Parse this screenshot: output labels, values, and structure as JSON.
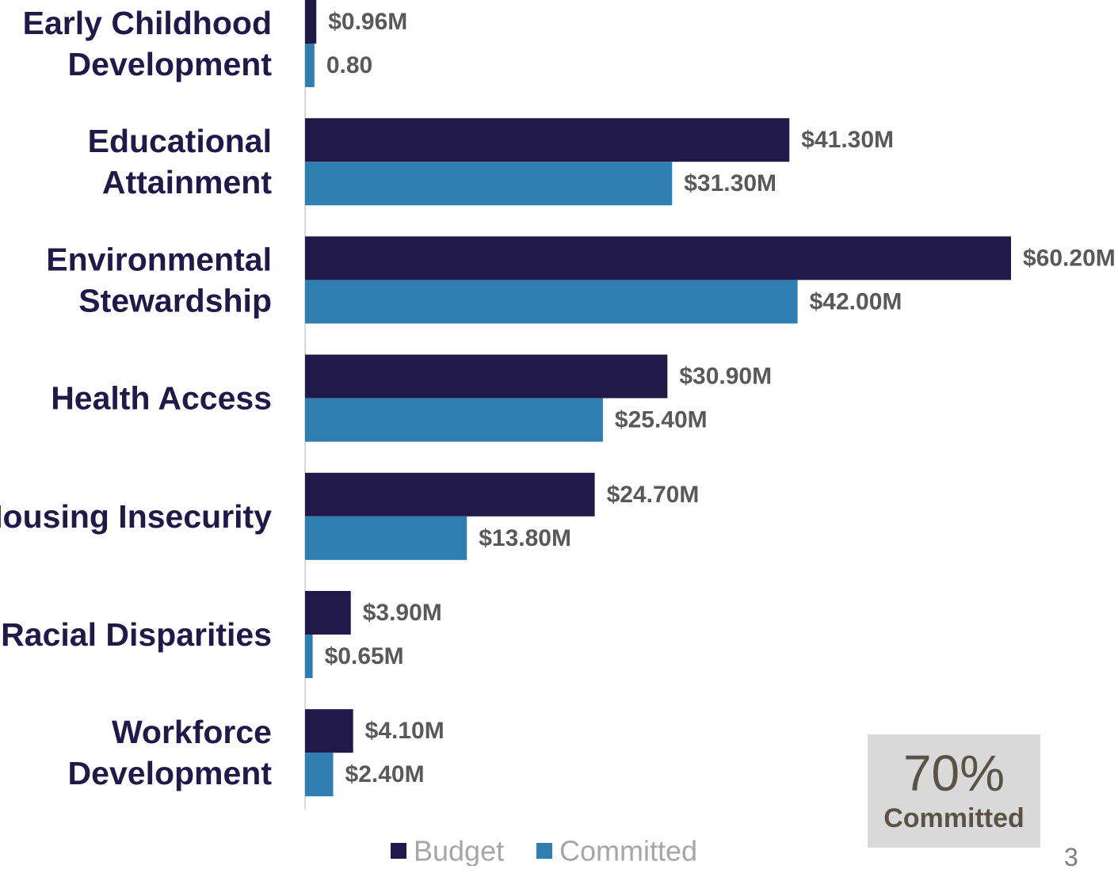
{
  "chart_data": {
    "type": "bar",
    "orientation": "horizontal",
    "categories": [
      [
        "Early Childhood",
        "Development"
      ],
      [
        "Educational",
        "Attainment"
      ],
      [
        "Environmental",
        "Stewardship"
      ],
      [
        "Health Access"
      ],
      [
        "Housing Insecurity"
      ],
      [
        "Racial Disparities"
      ],
      [
        "Workforce",
        "Development"
      ]
    ],
    "series": [
      {
        "name": "Budget",
        "color": "#211a48",
        "values": [
          0.96,
          41.3,
          60.2,
          30.9,
          24.7,
          3.9,
          4.1
        ],
        "labels": [
          "$0.96M",
          "$41.30M",
          "$60.20M",
          "$30.90M",
          "$24.70M",
          "$3.90M",
          "$4.10M"
        ]
      },
      {
        "name": "Committed",
        "color": "#2e7eb1",
        "values": [
          0.8,
          31.3,
          42.0,
          25.4,
          13.8,
          0.65,
          2.4
        ],
        "labels": [
          "0.80",
          "$31.30M",
          "$42.00M",
          "$25.40M",
          "$13.80M",
          "$0.65M",
          "$2.40M"
        ]
      }
    ],
    "xlim": [
      0,
      60.2
    ],
    "grid": false,
    "legend_position": "bottom",
    "title": "",
    "xlabel": "",
    "ylabel": ""
  },
  "kpi": {
    "value": "70%",
    "label": "Committed"
  },
  "page_number": "3"
}
